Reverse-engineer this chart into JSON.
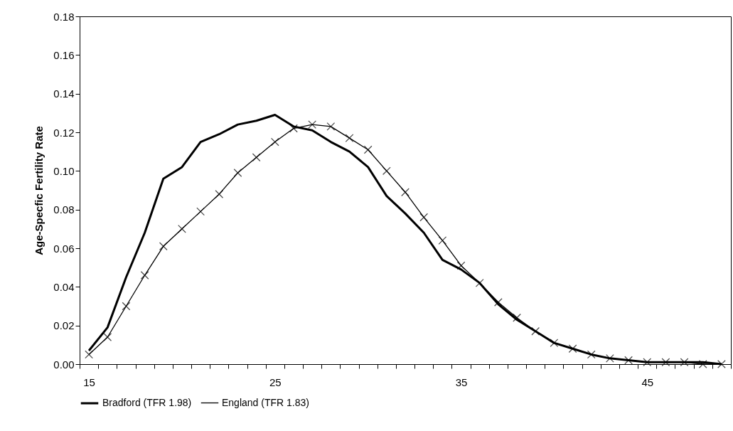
{
  "chart_data": {
    "type": "line",
    "ylabel": "Age-Specfic Fertility Rate",
    "categories": [
      "15",
      null,
      null,
      null,
      null,
      null,
      null,
      null,
      null,
      null,
      "25",
      null,
      null,
      null,
      null,
      null,
      null,
      null,
      null,
      null,
      "35",
      null,
      null,
      null,
      null,
      null,
      null,
      null,
      null,
      null,
      "45",
      null,
      null,
      null,
      null
    ],
    "series": [
      {
        "name": "Bradford (TFR 1.98)",
        "color": "#000000",
        "marker": "none",
        "values": [
          0.007,
          0.019,
          0.045,
          0.068,
          0.096,
          0.102,
          0.115,
          0.119,
          0.124,
          0.126,
          0.129,
          0.123,
          0.121,
          0.115,
          0.11,
          0.102,
          0.087,
          0.078,
          0.068,
          0.054,
          0.049,
          0.042,
          0.031,
          0.023,
          0.017,
          0.011,
          0.008,
          0.005,
          0.003,
          0.002,
          0.001,
          0.001,
          0.001,
          0.001,
          0.0
        ]
      },
      {
        "name": "England (TFR 1.83)",
        "color": "#000000",
        "marker": "cross",
        "values": [
          0.005,
          0.014,
          0.03,
          0.046,
          0.061,
          0.07,
          0.079,
          0.088,
          0.099,
          0.107,
          0.115,
          0.122,
          0.124,
          0.123,
          0.117,
          0.111,
          0.1,
          0.089,
          0.076,
          0.064,
          0.051,
          0.042,
          0.032,
          0.024,
          0.017,
          0.011,
          0.008,
          0.005,
          0.003,
          0.002,
          0.001,
          0.001,
          0.001,
          0.0,
          0.0
        ]
      }
    ],
    "ylim": [
      0,
      0.18
    ],
    "yticks": [
      {
        "value": 0,
        "label": "0.00"
      },
      0.02,
      0.04,
      0.06,
      0.08,
      {
        "value": 0.1,
        "label": "0.10"
      },
      0.12,
      0.14,
      0.16,
      0.18
    ],
    "grid": false,
    "legend": "bottom"
  }
}
